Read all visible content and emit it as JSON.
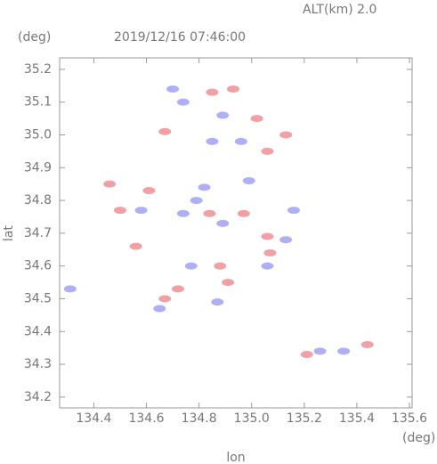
{
  "chart_data": {
    "type": "scatter",
    "title": "2019/12/16 07:46:00",
    "subtitle": "ALT(km) 2.0",
    "x_label": "lon",
    "y_label": "lat",
    "x_unit": "(deg)",
    "y_unit": "(deg)",
    "xlim": [
      134.27,
      135.61
    ],
    "ylim": [
      34.167,
      35.235
    ],
    "xticks": [
      134.4,
      134.6,
      134.8,
      {
        "value": 135,
        "label": "135.0"
      },
      135.2,
      135.4,
      135.6
    ],
    "yticks": [
      34.2,
      34.3,
      34.4,
      34.5,
      34.6,
      34.7,
      34.8,
      34.9,
      {
        "value": 35,
        "label": "35.0"
      },
      35.1,
      35.2
    ],
    "grid": false,
    "series": [
      {
        "color": "#e8606a",
        "x": [
          134.93,
          134.85,
          134.67,
          135.02,
          135.13,
          135.06,
          134.46,
          134.61,
          134.5,
          134.84,
          135.06,
          135.07,
          134.88,
          134.67,
          134.91,
          135.21,
          135.44,
          134.56,
          134.72,
          134.97
        ],
        "values": [
          35.14,
          35.13,
          35.01,
          35.05,
          35.0,
          34.95,
          34.85,
          34.83,
          34.77,
          34.76,
          34.69,
          34.64,
          34.6,
          34.5,
          34.55,
          34.33,
          34.36,
          34.66,
          34.53,
          34.76
        ]
      },
      {
        "color": "#7a7af0",
        "x": [
          134.74,
          134.89,
          134.85,
          134.96,
          134.74,
          134.79,
          134.58,
          135.16,
          134.89,
          135.13,
          135.06,
          134.77,
          134.87,
          134.65,
          135.26,
          135.35,
          134.31,
          134.7,
          134.99,
          134.82
        ],
        "values": [
          35.1,
          35.06,
          34.98,
          34.98,
          34.76,
          34.8,
          34.77,
          34.77,
          34.73,
          34.68,
          34.6,
          34.6,
          34.49,
          34.47,
          34.34,
          34.34,
          34.53,
          35.14,
          34.86,
          34.84
        ]
      }
    ]
  }
}
